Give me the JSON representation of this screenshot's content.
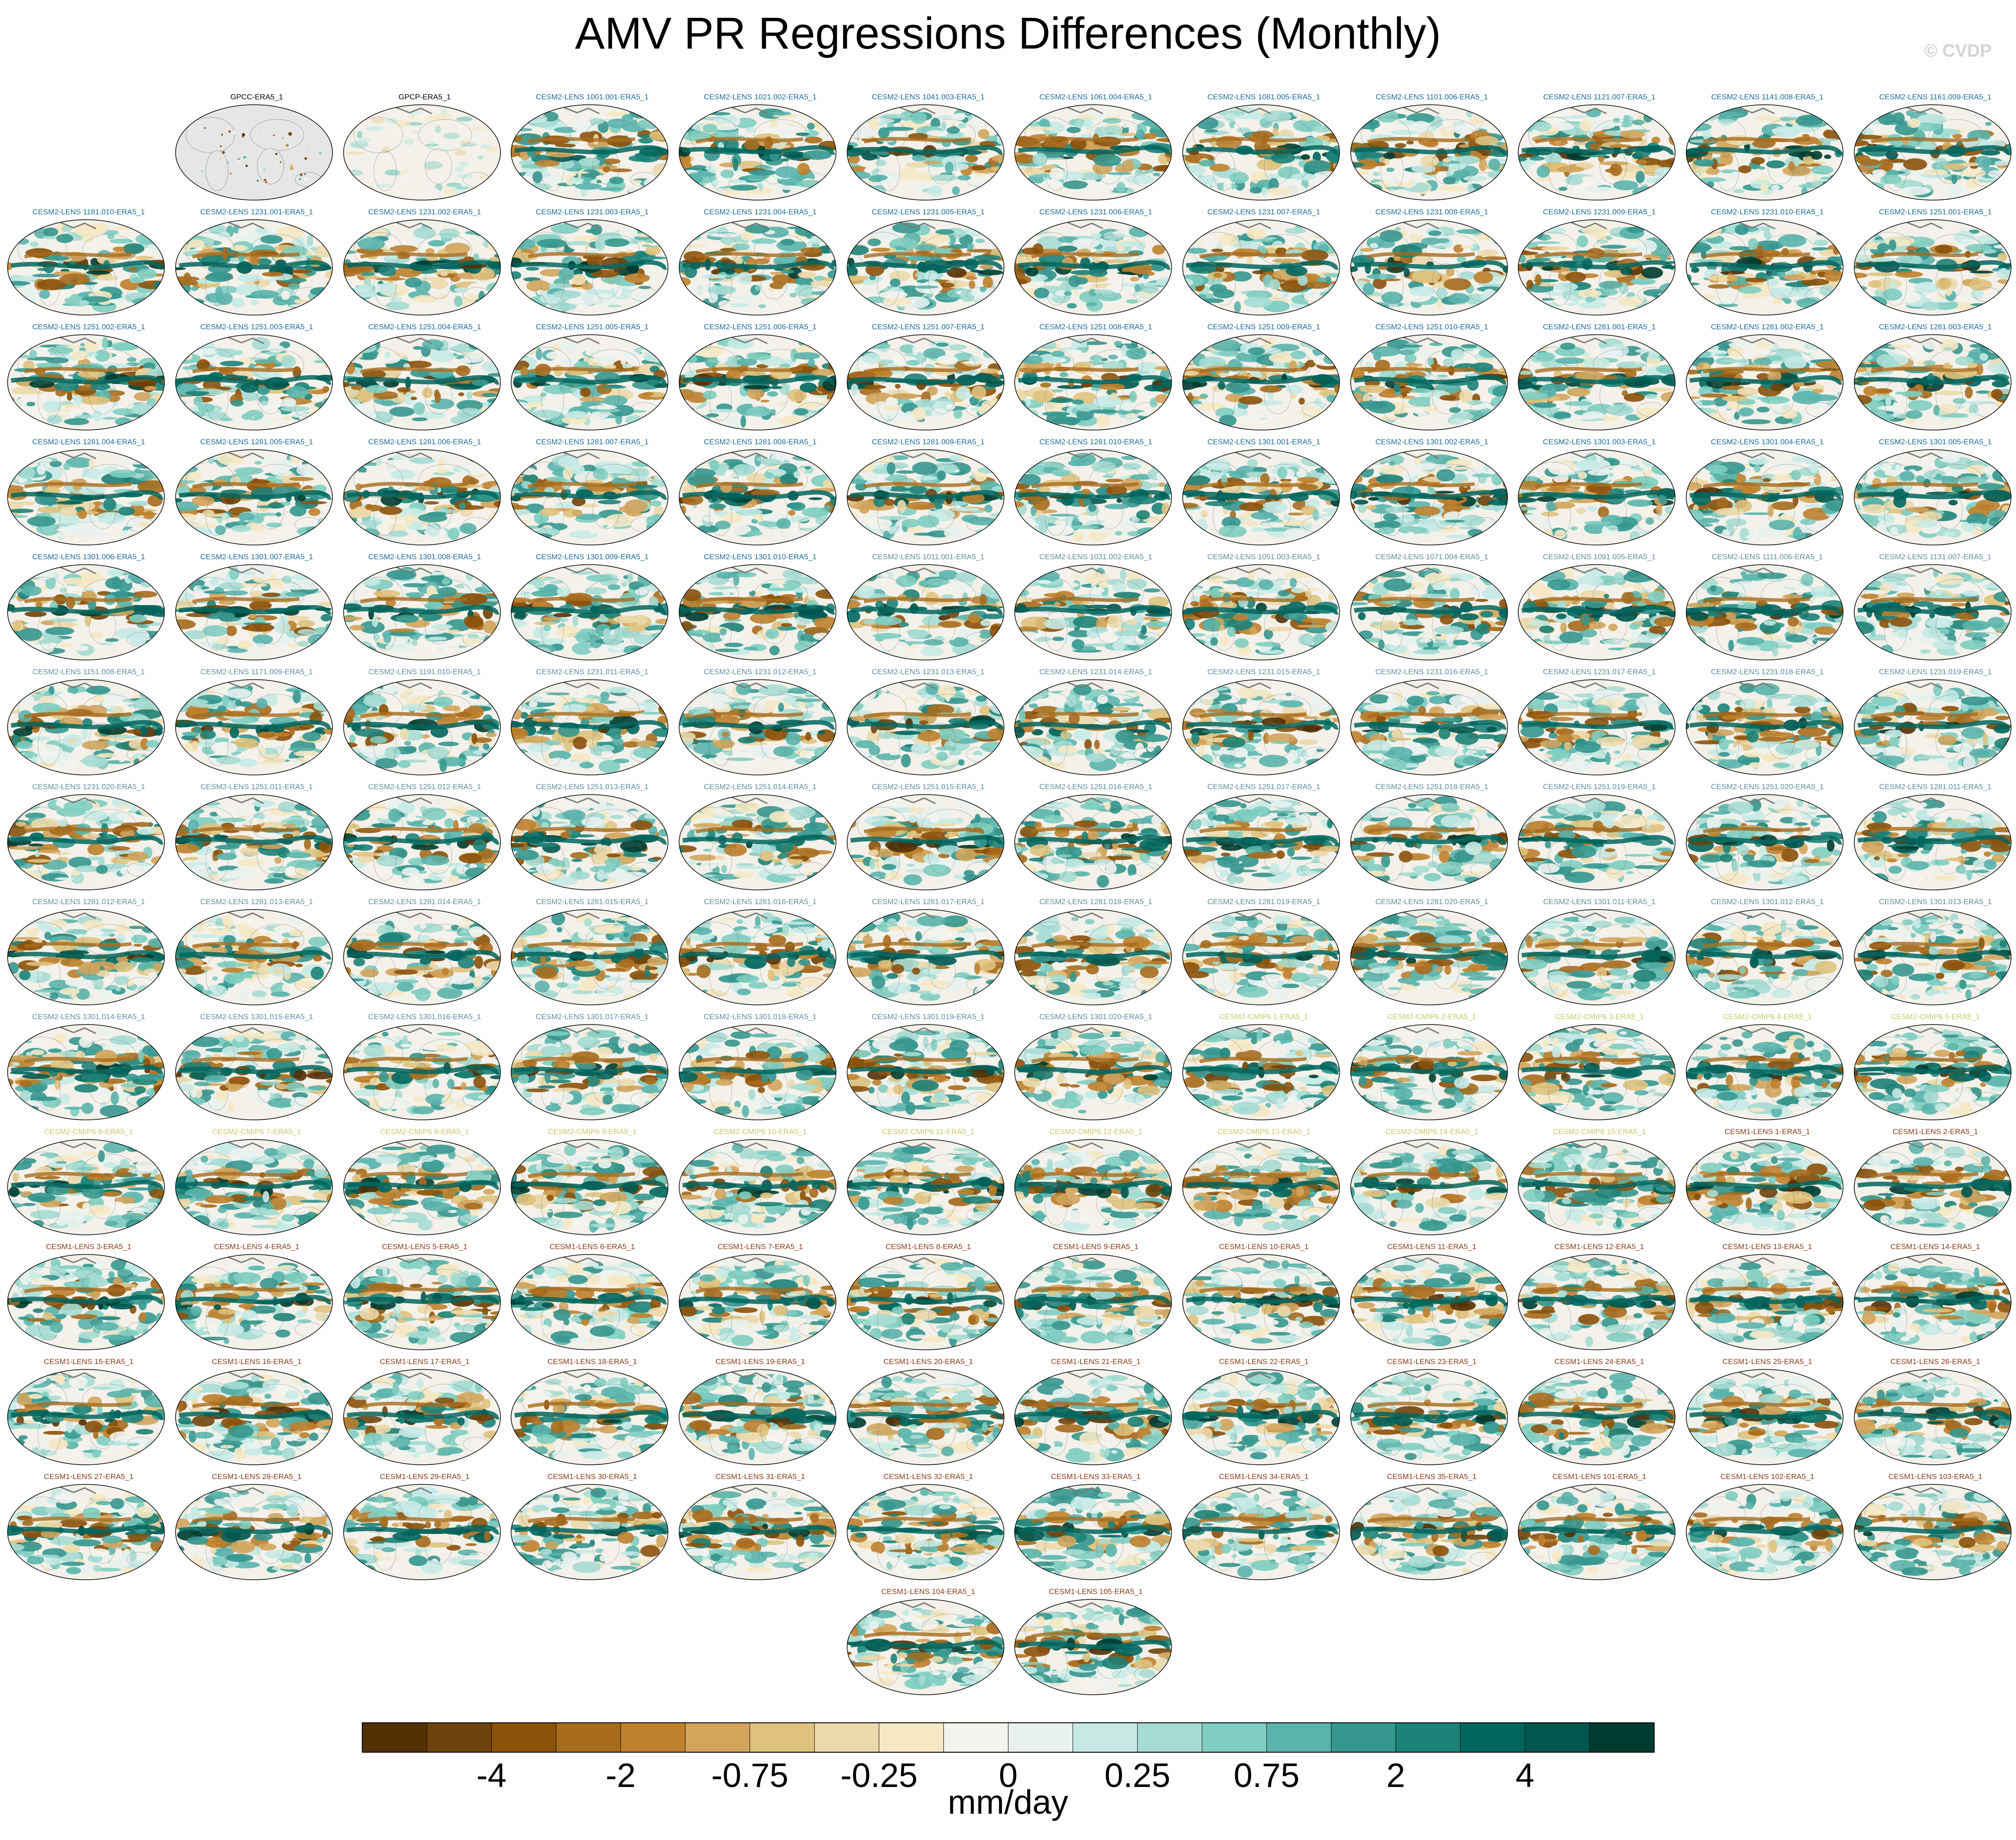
{
  "title": "AMV PR Regressions Differences (Monthly)",
  "watermark": "© CVDP",
  "colorbar": {
    "units": "mm/day",
    "tick_labels": [
      "-4",
      "-2",
      "-0.75",
      "-0.25",
      "0",
      "0.25",
      "0.75",
      "2",
      "4"
    ],
    "colors": [
      "#543005",
      "#6f420b",
      "#8c510a",
      "#a76b1e",
      "#bf812d",
      "#d2a45c",
      "#dfc27d",
      "#ecd9ab",
      "#f6e8c3",
      "#f5f3ee",
      "#e9f2f0",
      "#c7eae5",
      "#a6dcd3",
      "#80cdc1",
      "#5ab4ac",
      "#35978f",
      "#1d8278",
      "#01665e",
      "#00574f",
      "#003c30"
    ]
  },
  "label_colors": {
    "obs": "#000000",
    "cesm2_a": "#1b6e9a",
    "cesm2_b": "#5f8f9b",
    "cmip6": "#c8c86e",
    "cesm1": "#8a3b1a"
  },
  "chart_data": {
    "type": "heatmap",
    "title": "AMV PR Regressions Differences (Monthly)",
    "colorbar_label": "mm/day",
    "colorbar_ticks": [
      -4,
      -2,
      -0.75,
      -0.25,
      0,
      0.25,
      0.75,
      2,
      4
    ],
    "projection": "global map panels",
    "panels": [
      {
        "label": "GPCC-ERA5_1",
        "group": "obs",
        "style": "land"
      },
      {
        "label": "GPCP-ERA5_1",
        "group": "obs",
        "style": "faint"
      },
      {
        "label": "CESM2-LENS 1001.001-ERA5_1",
        "group": "cesm2_a"
      },
      {
        "label": "CESM2-LENS 1021.002-ERA5_1",
        "group": "cesm2_a"
      },
      {
        "label": "CESM2-LENS 1041.003-ERA5_1",
        "group": "cesm2_a"
      },
      {
        "label": "CESM2-LENS 1061.004-ERA5_1",
        "group": "cesm2_a"
      },
      {
        "label": "CESM2-LENS 1081.005-ERA5_1",
        "group": "cesm2_a"
      },
      {
        "label": "CESM2-LENS 1101.006-ERA5_1",
        "group": "cesm2_a"
      },
      {
        "label": "CESM2-LENS 1121.007-ERA5_1",
        "group": "cesm2_a"
      },
      {
        "label": "CESM2-LENS 1141.008-ERA5_1",
        "group": "cesm2_a"
      },
      {
        "label": "CESM2-LENS 1161.009-ERA5_1",
        "group": "cesm2_a"
      },
      {
        "label": "CESM2-LENS 1181.010-ERA5_1",
        "group": "cesm2_a"
      },
      {
        "label": "CESM2-LENS 1231.001-ERA5_1",
        "group": "cesm2_a"
      },
      {
        "label": "CESM2-LENS 1231.002-ERA5_1",
        "group": "cesm2_a"
      },
      {
        "label": "CESM2-LENS 1231.003-ERA5_1",
        "group": "cesm2_a"
      },
      {
        "label": "CESM2-LENS 1231.004-ERA5_1",
        "group": "cesm2_a"
      },
      {
        "label": "CESM2-LENS 1231.005-ERA5_1",
        "group": "cesm2_a"
      },
      {
        "label": "CESM2-LENS 1231.006-ERA5_1",
        "group": "cesm2_a"
      },
      {
        "label": "CESM2-LENS 1231.007-ERA5_1",
        "group": "cesm2_a"
      },
      {
        "label": "CESM2-LENS 1231.008-ERA5_1",
        "group": "cesm2_a"
      },
      {
        "label": "CESM2-LENS 1231.009-ERA5_1",
        "group": "cesm2_a"
      },
      {
        "label": "CESM2-LENS 1231.010-ERA5_1",
        "group": "cesm2_a"
      },
      {
        "label": "CESM2-LENS 1251.001-ERA5_1",
        "group": "cesm2_a"
      },
      {
        "label": "CESM2-LENS 1251.002-ERA5_1",
        "group": "cesm2_a"
      },
      {
        "label": "CESM2-LENS 1251.003-ERA5_1",
        "group": "cesm2_a"
      },
      {
        "label": "CESM2-LENS 1251.004-ERA5_1",
        "group": "cesm2_a"
      },
      {
        "label": "CESM2-LENS 1251.005-ERA5_1",
        "group": "cesm2_a"
      },
      {
        "label": "CESM2-LENS 1251.006-ERA5_1",
        "group": "cesm2_a"
      },
      {
        "label": "CESM2-LENS 1251.007-ERA5_1",
        "group": "cesm2_a"
      },
      {
        "label": "CESM2-LENS 1251.008-ERA5_1",
        "group": "cesm2_a"
      },
      {
        "label": "CESM2-LENS 1251.009-ERA5_1",
        "group": "cesm2_a"
      },
      {
        "label": "CESM2-LENS 1251.010-ERA5_1",
        "group": "cesm2_a"
      },
      {
        "label": "CESM2-LENS 1281.001-ERA5_1",
        "group": "cesm2_a"
      },
      {
        "label": "CESM2-LENS 1281.002-ERA5_1",
        "group": "cesm2_a"
      },
      {
        "label": "CESM2-LENS 1281.003-ERA5_1",
        "group": "cesm2_a"
      },
      {
        "label": "CESM2-LENS 1281.004-ERA5_1",
        "group": "cesm2_a"
      },
      {
        "label": "CESM2-LENS 1281.005-ERA5_1",
        "group": "cesm2_a"
      },
      {
        "label": "CESM2-LENS 1281.006-ERA5_1",
        "group": "cesm2_a"
      },
      {
        "label": "CESM2-LENS 1281.007-ERA5_1",
        "group": "cesm2_a"
      },
      {
        "label": "CESM2-LENS 1281.008-ERA5_1",
        "group": "cesm2_a"
      },
      {
        "label": "CESM2-LENS 1281.009-ERA5_1",
        "group": "cesm2_a"
      },
      {
        "label": "CESM2-LENS 1281.010-ERA5_1",
        "group": "cesm2_a"
      },
      {
        "label": "CESM2-LENS 1301.001-ERA5_1",
        "group": "cesm2_a"
      },
      {
        "label": "CESM2-LENS 1301.002-ERA5_1",
        "group": "cesm2_a"
      },
      {
        "label": "CESM2-LENS 1301.003-ERA5_1",
        "group": "cesm2_a"
      },
      {
        "label": "CESM2-LENS 1301.004-ERA5_1",
        "group": "cesm2_a"
      },
      {
        "label": "CESM2-LENS 1301.005-ERA5_1",
        "group": "cesm2_a"
      },
      {
        "label": "CESM2-LENS 1301.006-ERA5_1",
        "group": "cesm2_a"
      },
      {
        "label": "CESM2-LENS 1301.007-ERA5_1",
        "group": "cesm2_a"
      },
      {
        "label": "CESM2-LENS 1301.008-ERA5_1",
        "group": "cesm2_a"
      },
      {
        "label": "CESM2-LENS 1301.009-ERA5_1",
        "group": "cesm2_a"
      },
      {
        "label": "CESM2-LENS 1301.010-ERA5_1",
        "group": "cesm2_a"
      },
      {
        "label": "CESM2-LENS 1011.001-ERA5_1",
        "group": "cesm2_b"
      },
      {
        "label": "CESM2-LENS 1031.002-ERA5_1",
        "group": "cesm2_b"
      },
      {
        "label": "CESM2-LENS 1051.003-ERA5_1",
        "group": "cesm2_b"
      },
      {
        "label": "CESM2-LENS 1071.004-ERA5_1",
        "group": "cesm2_b"
      },
      {
        "label": "CESM2-LENS 1091.005-ERA5_1",
        "group": "cesm2_b"
      },
      {
        "label": "CESM2-LENS 1111.006-ERA5_1",
        "group": "cesm2_b"
      },
      {
        "label": "CESM2-LENS 1131.007-ERA5_1",
        "group": "cesm2_b"
      },
      {
        "label": "CESM2-LENS 1151.008-ERA5_1",
        "group": "cesm2_b"
      },
      {
        "label": "CESM2-LENS 1171.009-ERA5_1",
        "group": "cesm2_b"
      },
      {
        "label": "CESM2-LENS 1191.010-ERA5_1",
        "group": "cesm2_b"
      },
      {
        "label": "CESM2-LENS 1231.011-ERA5_1",
        "group": "cesm2_b"
      },
      {
        "label": "CESM2-LENS 1231.012-ERA5_1",
        "group": "cesm2_b"
      },
      {
        "label": "CESM2-LENS 1231.013-ERA5_1",
        "group": "cesm2_b"
      },
      {
        "label": "CESM2-LENS 1231.014-ERA5_1",
        "group": "cesm2_b"
      },
      {
        "label": "CESM2-LENS 1231.015-ERA5_1",
        "group": "cesm2_b"
      },
      {
        "label": "CESM2-LENS 1231.016-ERA5_1",
        "group": "cesm2_b"
      },
      {
        "label": "CESM2-LENS 1231.017-ERA5_1",
        "group": "cesm2_b"
      },
      {
        "label": "CESM2-LENS 1231.018-ERA5_1",
        "group": "cesm2_b"
      },
      {
        "label": "CESM2-LENS 1231.019-ERA5_1",
        "group": "cesm2_b"
      },
      {
        "label": "CESM2-LENS 1231.020-ERA5_1",
        "group": "cesm2_b"
      },
      {
        "label": "CESM2-LENS 1251.011-ERA5_1",
        "group": "cesm2_b"
      },
      {
        "label": "CESM2-LENS 1251.012-ERA5_1",
        "group": "cesm2_b"
      },
      {
        "label": "CESM2-LENS 1251.013-ERA5_1",
        "group": "cesm2_b"
      },
      {
        "label": "CESM2-LENS 1251.014-ERA5_1",
        "group": "cesm2_b"
      },
      {
        "label": "CESM2-LENS 1251.015-ERA5_1",
        "group": "cesm2_b"
      },
      {
        "label": "CESM2-LENS 1251.016-ERA5_1",
        "group": "cesm2_b"
      },
      {
        "label": "CESM2-LENS 1251.017-ERA5_1",
        "group": "cesm2_b"
      },
      {
        "label": "CESM2-LENS 1251.018-ERA5_1",
        "group": "cesm2_b"
      },
      {
        "label": "CESM2-LENS 1251.019-ERA5_1",
        "group": "cesm2_b"
      },
      {
        "label": "CESM2-LENS 1251.020-ERA5_1",
        "group": "cesm2_b"
      },
      {
        "label": "CESM2-LENS 1281.011-ERA5_1",
        "group": "cesm2_b"
      },
      {
        "label": "CESM2-LENS 1281.012-ERA5_1",
        "group": "cesm2_b"
      },
      {
        "label": "CESM2-LENS 1281.013-ERA5_1",
        "group": "cesm2_b"
      },
      {
        "label": "CESM2-LENS 1281.014-ERA5_1",
        "group": "cesm2_b"
      },
      {
        "label": "CESM2-LENS 1281.015-ERA5_1",
        "group": "cesm2_b"
      },
      {
        "label": "CESM2-LENS 1281.016-ERA5_1",
        "group": "cesm2_b"
      },
      {
        "label": "CESM2-LENS 1281.017-ERA5_1",
        "group": "cesm2_b"
      },
      {
        "label": "CESM2-LENS 1281.018-ERA5_1",
        "group": "cesm2_b"
      },
      {
        "label": "CESM2-LENS 1281.019-ERA5_1",
        "group": "cesm2_b"
      },
      {
        "label": "CESM2-LENS 1281.020-ERA5_1",
        "group": "cesm2_b"
      },
      {
        "label": "CESM2-LENS 1301.011-ERA5_1",
        "group": "cesm2_b"
      },
      {
        "label": "CESM2-LENS 1301.012-ERA5_1",
        "group": "cesm2_b"
      },
      {
        "label": "CESM2-LENS 1301.013-ERA5_1",
        "group": "cesm2_b"
      },
      {
        "label": "CESM2-LENS 1301.014-ERA5_1",
        "group": "cesm2_b"
      },
      {
        "label": "CESM2-LENS 1301.015-ERA5_1",
        "group": "cesm2_b"
      },
      {
        "label": "CESM2-LENS 1301.016-ERA5_1",
        "group": "cesm2_b"
      },
      {
        "label": "CESM2-LENS 1301.017-ERA5_1",
        "group": "cesm2_b"
      },
      {
        "label": "CESM2-LENS 1301.018-ERA5_1",
        "group": "cesm2_b"
      },
      {
        "label": "CESM2-LENS 1301.019-ERA5_1",
        "group": "cesm2_b"
      },
      {
        "label": "CESM2-LENS 1301.020-ERA5_1",
        "group": "cesm2_b"
      },
      {
        "label": "CESM2-CMIP6 1-ERA5_1",
        "group": "cmip6"
      },
      {
        "label": "CESM2-CMIP6 2-ERA5_1",
        "group": "cmip6"
      },
      {
        "label": "CESM2-CMIP6 3-ERA5_1",
        "group": "cmip6"
      },
      {
        "label": "CESM2-CMIP6 4-ERA5_1",
        "group": "cmip6"
      },
      {
        "label": "CESM2-CMIP6 5-ERA5_1",
        "group": "cmip6"
      },
      {
        "label": "CESM2-CMIP6 6-ERA5_1",
        "group": "cmip6"
      },
      {
        "label": "CESM2-CMIP6 7-ERA5_1",
        "group": "cmip6"
      },
      {
        "label": "CESM2-CMIP6 8-ERA5_1",
        "group": "cmip6"
      },
      {
        "label": "CESM2-CMIP6 9-ERA5_1",
        "group": "cmip6"
      },
      {
        "label": "CESM2-CMIP6 10-ERA5_1",
        "group": "cmip6"
      },
      {
        "label": "CESM2-CMIP6 11-ERA5_1",
        "group": "cmip6"
      },
      {
        "label": "CESM2-CMIP6 12-ERA5_1",
        "group": "cmip6"
      },
      {
        "label": "CESM2-CMIP6 13-ERA5_1",
        "group": "cmip6"
      },
      {
        "label": "CESM2-CMIP6 14-ERA5_1",
        "group": "cmip6"
      },
      {
        "label": "CESM2-CMIP6 15-ERA5_1",
        "group": "cmip6"
      },
      {
        "label": "CESM1-LENS 1-ERA5_1",
        "group": "cesm1"
      },
      {
        "label": "CESM1-LENS 2-ERA5_1",
        "group": "cesm1"
      },
      {
        "label": "CESM1-LENS 3-ERA5_1",
        "group": "cesm1"
      },
      {
        "label": "CESM1-LENS 4-ERA5_1",
        "group": "cesm1"
      },
      {
        "label": "CESM1-LENS 5-ERA5_1",
        "group": "cesm1"
      },
      {
        "label": "CESM1-LENS 6-ERA5_1",
        "group": "cesm1"
      },
      {
        "label": "CESM1-LENS 7-ERA5_1",
        "group": "cesm1"
      },
      {
        "label": "CESM1-LENS 8-ERA5_1",
        "group": "cesm1"
      },
      {
        "label": "CESM1-LENS 9-ERA5_1",
        "group": "cesm1"
      },
      {
        "label": "CESM1-LENS 10-ERA5_1",
        "group": "cesm1"
      },
      {
        "label": "CESM1-LENS 11-ERA5_1",
        "group": "cesm1"
      },
      {
        "label": "CESM1-LENS 12-ERA5_1",
        "group": "cesm1"
      },
      {
        "label": "CESM1-LENS 13-ERA5_1",
        "group": "cesm1"
      },
      {
        "label": "CESM1-LENS 14-ERA5_1",
        "group": "cesm1"
      },
      {
        "label": "CESM1-LENS 15-ERA5_1",
        "group": "cesm1"
      },
      {
        "label": "CESM1-LENS 16-ERA5_1",
        "group": "cesm1"
      },
      {
        "label": "CESM1-LENS 17-ERA5_1",
        "group": "cesm1"
      },
      {
        "label": "CESM1-LENS 18-ERA5_1",
        "group": "cesm1"
      },
      {
        "label": "CESM1-LENS 19-ERA5_1",
        "group": "cesm1"
      },
      {
        "label": "CESM1-LENS 20-ERA5_1",
        "group": "cesm1"
      },
      {
        "label": "CESM1-LENS 21-ERA5_1",
        "group": "cesm1"
      },
      {
        "label": "CESM1-LENS 22-ERA5_1",
        "group": "cesm1"
      },
      {
        "label": "CESM1-LENS 23-ERA5_1",
        "group": "cesm1"
      },
      {
        "label": "CESM1-LENS 24-ERA5_1",
        "group": "cesm1"
      },
      {
        "label": "CESM1-LENS 25-ERA5_1",
        "group": "cesm1"
      },
      {
        "label": "CESM1-LENS 26-ERA5_1",
        "group": "cesm1"
      },
      {
        "label": "CESM1-LENS 27-ERA5_1",
        "group": "cesm1"
      },
      {
        "label": "CESM1-LENS 28-ERA5_1",
        "group": "cesm1"
      },
      {
        "label": "CESM1-LENS 29-ERA5_1",
        "group": "cesm1"
      },
      {
        "label": "CESM1-LENS 30-ERA5_1",
        "group": "cesm1"
      },
      {
        "label": "CESM1-LENS 31-ERA5_1",
        "group": "cesm1"
      },
      {
        "label": "CESM1-LENS 32-ERA5_1",
        "group": "cesm1"
      },
      {
        "label": "CESM1-LENS 33-ERA5_1",
        "group": "cesm1"
      },
      {
        "label": "CESM1-LENS 34-ERA5_1",
        "group": "cesm1"
      },
      {
        "label": "CESM1-LENS 35-ERA5_1",
        "group": "cesm1"
      },
      {
        "label": "CESM1-LENS 101-ERA5_1",
        "group": "cesm1"
      },
      {
        "label": "CESM1-LENS 102-ERA5_1",
        "group": "cesm1"
      },
      {
        "label": "CESM1-LENS 103-ERA5_1",
        "group": "cesm1"
      },
      {
        "label": "CESM1-LENS 104-ERA5_1",
        "group": "cesm1"
      },
      {
        "label": "CESM1-LENS 105-ERA5_1",
        "group": "cesm1"
      }
    ]
  }
}
